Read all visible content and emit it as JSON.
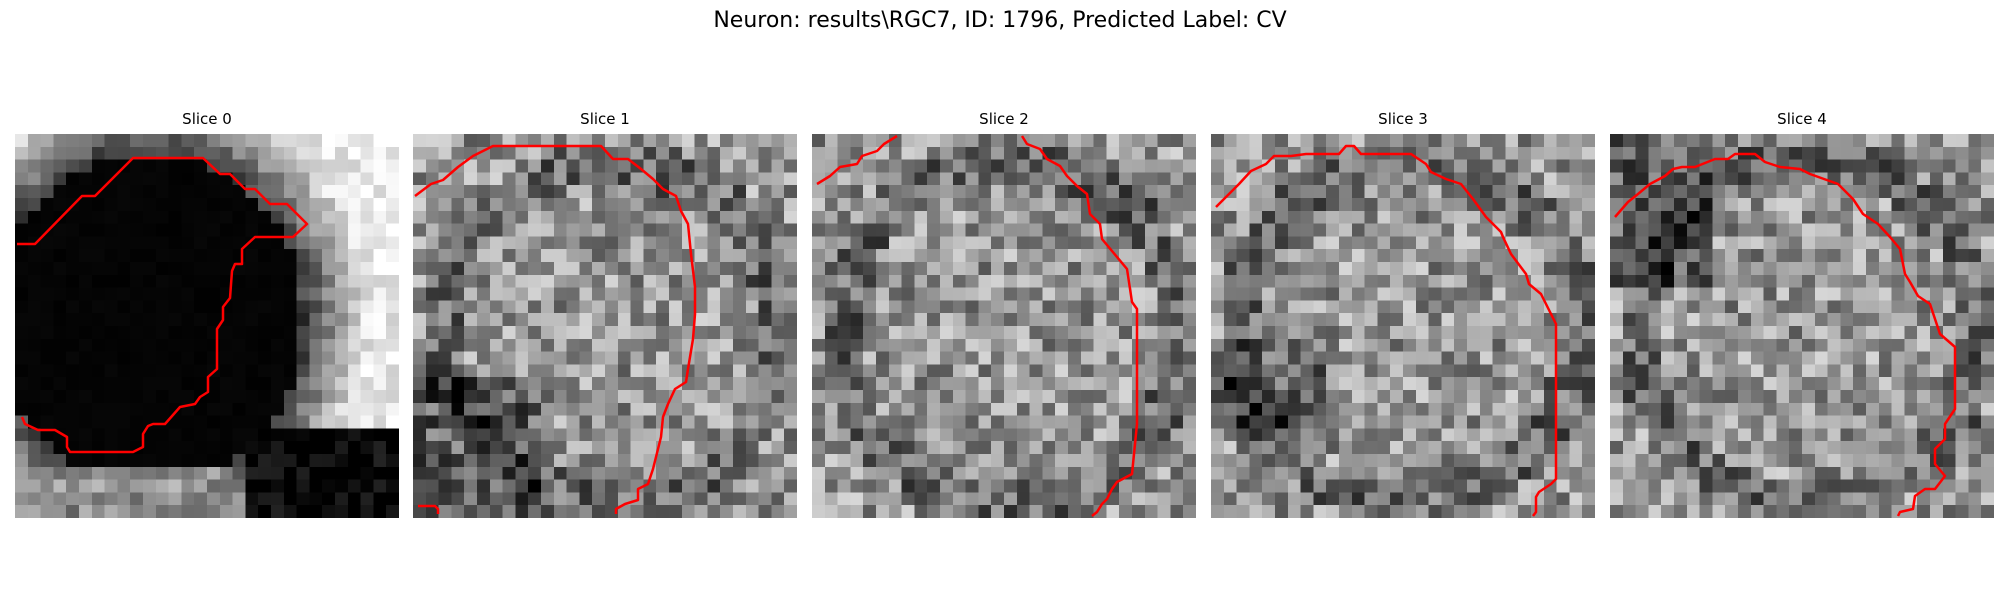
{
  "figure": {
    "suptitle": "Neuron: results\\RGC7, ID: 1796, Predicted Label: CV"
  },
  "slices": [
    {
      "title": "Slice 0",
      "contour_color": "#ff0000"
    },
    {
      "title": "Slice 1",
      "contour_color": "#ff0000"
    },
    {
      "title": "Slice 2",
      "contour_color": "#ff0000"
    },
    {
      "title": "Slice 3",
      "contour_color": "#ff0000"
    },
    {
      "title": "Slice 4",
      "contour_color": "#ff0000"
    }
  ]
}
